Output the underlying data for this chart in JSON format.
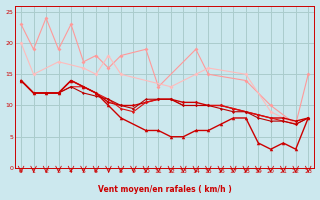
{
  "background_color": "#cce8ee",
  "grid_color": "#aacccc",
  "xlabel": "Vent moyen/en rafales ( km/h )",
  "xlim": [
    -0.5,
    23.5
  ],
  "ylim": [
    0,
    26
  ],
  "yticks": [
    0,
    5,
    10,
    15,
    20,
    25
  ],
  "xticks": [
    0,
    1,
    2,
    3,
    4,
    5,
    6,
    7,
    8,
    9,
    10,
    11,
    12,
    13,
    14,
    15,
    16,
    17,
    18,
    19,
    20,
    21,
    22,
    23
  ],
  "series": [
    {
      "x": [
        0,
        1,
        2,
        3,
        4,
        5,
        6,
        7,
        8,
        10,
        11,
        14,
        15,
        18,
        20,
        22,
        23
      ],
      "y": [
        23,
        19,
        24,
        19,
        23,
        17,
        18,
        16,
        18,
        19,
        13,
        19,
        15,
        14,
        10,
        7,
        15
      ],
      "color": "#ff9999",
      "lw": 0.8,
      "marker": "D",
      "ms": 2.0,
      "zorder": 2
    },
    {
      "x": [
        0,
        1,
        3,
        5,
        6,
        7,
        8,
        12,
        14,
        15,
        18,
        20,
        22
      ],
      "y": [
        20,
        15,
        17,
        16,
        15,
        18,
        15,
        13,
        15,
        16,
        15,
        9,
        7
      ],
      "color": "#ffbbbb",
      "lw": 0.8,
      "marker": "D",
      "ms": 2.0,
      "zorder": 2
    },
    {
      "x": [
        0,
        1,
        2,
        3,
        4,
        5,
        6,
        7,
        8,
        9,
        10,
        11,
        12,
        13,
        14,
        15,
        16,
        17,
        18,
        19,
        20,
        21,
        22,
        23
      ],
      "y": [
        14,
        12,
        12,
        12,
        14,
        13,
        12,
        10.5,
        10,
        10,
        10.5,
        11,
        11,
        10.5,
        10.5,
        10,
        10,
        9.5,
        9,
        8.5,
        8,
        8,
        7.5,
        8
      ],
      "color": "#cc0000",
      "lw": 1.0,
      "marker": "D",
      "ms": 1.8,
      "zorder": 3
    },
    {
      "x": [
        0,
        1,
        2,
        3,
        4,
        5,
        6,
        7,
        8,
        9,
        10,
        11,
        12,
        13,
        14,
        15,
        16,
        17,
        18,
        19,
        20,
        21,
        22,
        23
      ],
      "y": [
        14,
        12,
        12,
        12,
        13,
        13,
        12,
        11,
        9.5,
        9,
        10.5,
        11,
        11,
        10,
        10,
        10,
        10,
        9.5,
        9,
        8.5,
        8,
        7.5,
        7,
        8
      ],
      "color": "#dd1111",
      "lw": 0.8,
      "marker": "D",
      "ms": 1.5,
      "zorder": 3
    },
    {
      "x": [
        0,
        1,
        2,
        3,
        4,
        5,
        6,
        7,
        8,
        9,
        10,
        11,
        12,
        13,
        14,
        15,
        16,
        17,
        18,
        19,
        20,
        21,
        22,
        23
      ],
      "y": [
        14,
        12,
        12,
        12,
        13,
        12,
        11.5,
        11,
        10,
        9.5,
        11,
        11,
        11,
        10,
        10,
        10,
        9.5,
        9,
        9,
        8,
        7.5,
        7.5,
        7,
        8
      ],
      "color": "#bb0000",
      "lw": 0.8,
      "marker": "D",
      "ms": 1.5,
      "zorder": 3
    },
    {
      "x": [
        0,
        1,
        2,
        3,
        4,
        5,
        6,
        7,
        8,
        10,
        11,
        12,
        13,
        14,
        15,
        16,
        17,
        18,
        19,
        20,
        21,
        22,
        23
      ],
      "y": [
        14,
        12,
        12,
        12,
        14,
        13,
        12,
        10,
        8,
        6,
        6,
        5,
        5,
        6,
        6,
        7,
        8,
        8,
        4,
        3,
        4,
        3,
        8
      ],
      "color": "#cc0000",
      "lw": 1.0,
      "marker": "^",
      "ms": 2.5,
      "zorder": 4
    }
  ],
  "arrow_color": "#cc0000",
  "label_color": "#cc0000",
  "spine_color": "#cc0000"
}
